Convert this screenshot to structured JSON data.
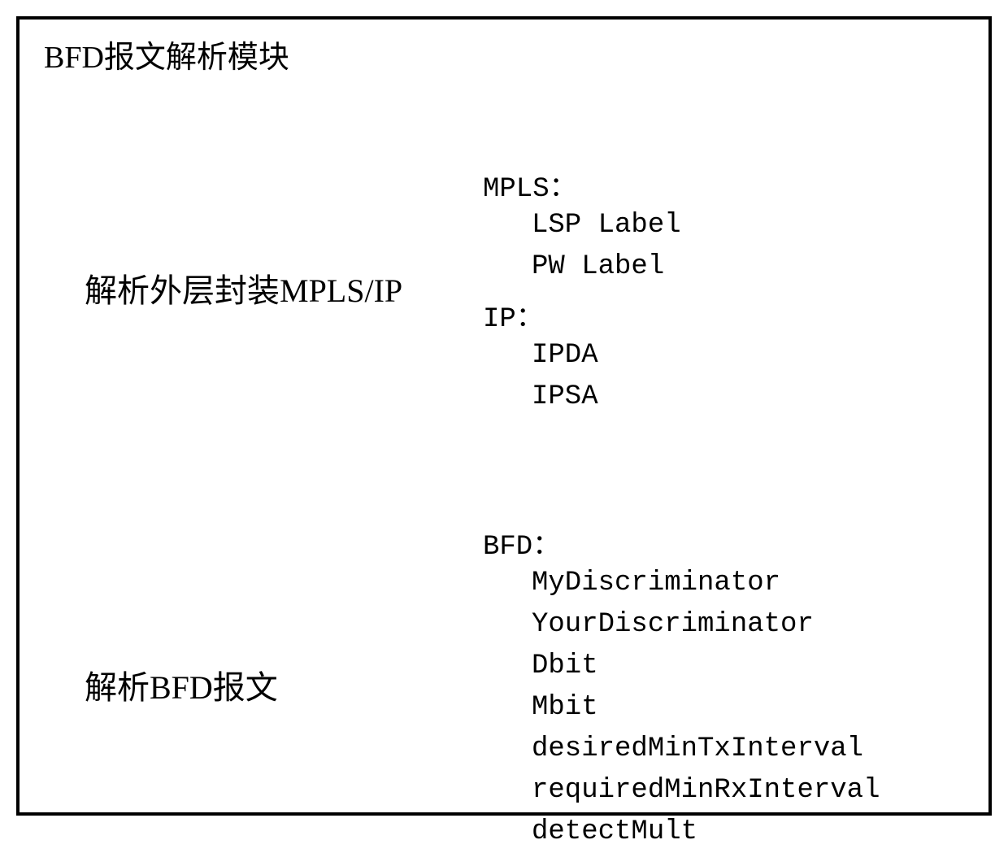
{
  "diagram": {
    "title": "BFD报文解析模块",
    "border_color": "#000000",
    "border_width": 4,
    "background_color": "#ffffff",
    "text_color": "#000000",
    "title_fontsize": 38,
    "label_fontsize": 40,
    "detail_fontsize": 34,
    "sections": [
      {
        "label": "解析外层封装MPLS/IP",
        "groups": [
          {
            "header": "MPLS：",
            "items": [
              "LSP Label",
              "PW Label"
            ]
          },
          {
            "header": "IP：",
            "items": [
              "IPDA",
              "IPSA"
            ]
          }
        ]
      },
      {
        "label": "解析BFD报文",
        "groups": [
          {
            "header": "BFD：",
            "items": [
              "MyDiscriminator",
              "YourDiscriminator",
              "Dbit",
              "Mbit",
              "desiredMinTxInterval",
              "requiredMinRxInterval",
              "detectMult"
            ]
          }
        ]
      }
    ]
  }
}
